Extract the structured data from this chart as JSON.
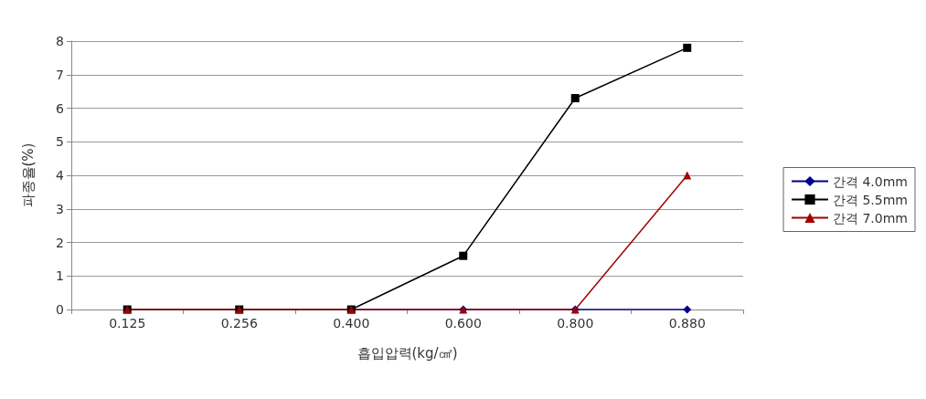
{
  "chart_data": {
    "type": "line",
    "xlabel": "흡입압력(kg/㎠)",
    "ylabel": "파종율(%)",
    "categories": [
      "0.125",
      "0.256",
      "0.400",
      "0.600",
      "0.800",
      "0.880"
    ],
    "series": [
      {
        "name": "간격 4.0mm",
        "color": "#00008b",
        "marker": "diamond",
        "values": [
          null,
          null,
          0,
          0,
          0,
          0
        ]
      },
      {
        "name": "간격 5.5mm",
        "color": "#000000",
        "marker": "square",
        "values": [
          0,
          0,
          0,
          1.6,
          6.3,
          7.8
        ]
      },
      {
        "name": "간격 7.0mm",
        "color": "#a00000",
        "marker": "triangle",
        "values": [
          0,
          0,
          0,
          0,
          0,
          4.0
        ]
      }
    ],
    "ylim": [
      0,
      8
    ],
    "yticks": [
      0,
      1,
      2,
      3,
      4,
      5,
      6,
      7,
      8
    ],
    "grid": "y",
    "legend": "right",
    "line_style": "solid"
  }
}
